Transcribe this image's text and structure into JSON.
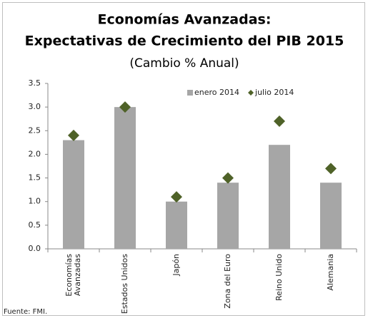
{
  "chart_data": {
    "type": "bar",
    "title": "Economías Avanzadas:",
    "subtitle": "Expectativas de Crecimiento del PIB 2015",
    "subtitle2": "(Cambio % Anual)",
    "categories": [
      "Economías Avanzadas",
      "Estados Unidos",
      "Japón",
      "Zona del Euro",
      "Reino Unido",
      "Alemania"
    ],
    "series": [
      {
        "name": "enero 2014",
        "type": "bar",
        "color": "#a6a6a6",
        "values": [
          2.3,
          3.0,
          1.0,
          1.4,
          2.2,
          1.4
        ]
      },
      {
        "name": "julio 2014",
        "type": "diamond",
        "color": "#4f6228",
        "values": [
          2.4,
          3.0,
          1.1,
          1.5,
          2.7,
          1.7
        ]
      }
    ],
    "ylim": [
      0,
      3.5
    ],
    "yticks": [
      {
        "value": 0,
        "label": "0.0"
      },
      0.5,
      {
        "value": 1,
        "label": "1.0"
      },
      1.5,
      {
        "value": 2,
        "label": "2.0"
      },
      2.5,
      {
        "value": 3,
        "label": "3.0"
      },
      3.5
    ],
    "legend": "top",
    "source": "Fuente: FMI."
  }
}
